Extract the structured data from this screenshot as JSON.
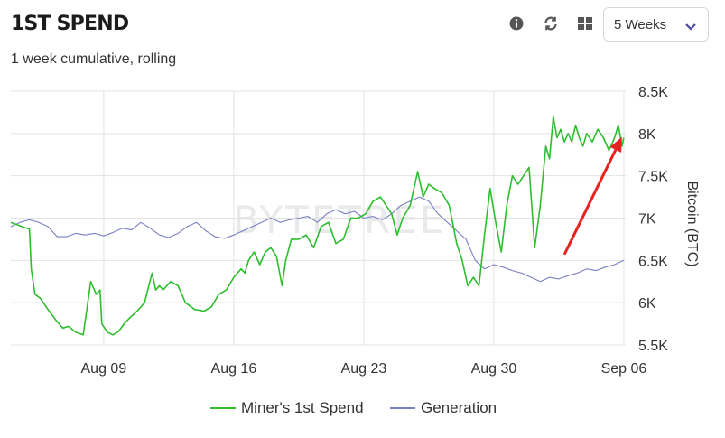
{
  "header": {
    "title": "1ST SPEND",
    "subtitle": "1 week cumulative, rolling",
    "icons": [
      "info-icon",
      "refresh-icon",
      "grid-view-icon"
    ],
    "range_select": {
      "value": "5 Weeks"
    }
  },
  "watermark": "BYTETREE",
  "colors": {
    "miner": "#2ebd2e",
    "generation": "#7b7fc4",
    "grid": "#e3e3e3",
    "annotation": "#e8231f"
  },
  "chart_data": {
    "type": "line",
    "title": "",
    "xlabel": "",
    "ylabel": "Bitcoin (BTC)",
    "y_axis_position": "right",
    "ylim": [
      5500,
      8500
    ],
    "y_ticks": [
      5500,
      6000,
      6500,
      7000,
      7500,
      8000,
      8500
    ],
    "y_tick_labels": [
      "5.5K",
      "6K",
      "6.5K",
      "7K",
      "7.5K",
      "8K",
      "8.5K"
    ],
    "x_tick_labels": [
      "Aug 09",
      "Aug 16",
      "Aug 23",
      "Aug 30",
      "Sep 06"
    ],
    "x_tick_days": [
      9,
      16,
      23,
      30,
      37
    ],
    "x_range_days": [
      4,
      37.1
    ],
    "grid": true,
    "legend_position": "bottom",
    "series": [
      {
        "name": "Miner's 1st Spend",
        "color": "#2ebd2e",
        "x": [
          4.0,
          4.6,
          5.0,
          5.1,
          5.3,
          5.6,
          6.0,
          6.4,
          6.8,
          7.1,
          7.5,
          7.9,
          8.3,
          8.6,
          8.8,
          8.9,
          9.2,
          9.5,
          9.8,
          10.1,
          10.4,
          10.8,
          11.2,
          11.6,
          11.8,
          12.0,
          12.2,
          12.6,
          13.0,
          13.4,
          13.9,
          14.4,
          14.8,
          15.2,
          15.6,
          16.0,
          16.4,
          16.6,
          16.8,
          17.1,
          17.4,
          17.7,
          18.0,
          18.3,
          18.6,
          18.8,
          19.1,
          19.5,
          19.9,
          20.3,
          20.7,
          21.1,
          21.5,
          21.9,
          22.3,
          22.7,
          23.1,
          23.5,
          23.9,
          24.2,
          24.5,
          24.8,
          25.1,
          25.5,
          25.9,
          26.2,
          26.5,
          26.8,
          27.2,
          27.6,
          28.0,
          28.3,
          28.6,
          28.9,
          29.2,
          29.5,
          29.8,
          30.1,
          30.4,
          30.7,
          31.0,
          31.3,
          31.6,
          31.9,
          32.2,
          32.5,
          32.8,
          33.0,
          33.2,
          33.4,
          33.6,
          33.8,
          34.0,
          34.2,
          34.4,
          34.6,
          34.8,
          35.0,
          35.3,
          35.6,
          35.9,
          36.2,
          36.5,
          36.7,
          36.9,
          37.0
        ],
        "values": [
          6950,
          6900,
          6870,
          6400,
          6100,
          6050,
          5920,
          5800,
          5700,
          5720,
          5650,
          5620,
          6250,
          6100,
          6150,
          5750,
          5650,
          5620,
          5660,
          5750,
          5820,
          5900,
          6000,
          6350,
          6150,
          6200,
          6150,
          6250,
          6200,
          6000,
          5920,
          5900,
          5950,
          6100,
          6150,
          6300,
          6400,
          6350,
          6500,
          6600,
          6450,
          6600,
          6650,
          6550,
          6200,
          6500,
          6750,
          6750,
          6800,
          6650,
          6900,
          6950,
          6700,
          6750,
          7000,
          7000,
          7050,
          7200,
          7250,
          7150,
          7050,
          6800,
          7000,
          7150,
          7550,
          7250,
          7400,
          7350,
          7300,
          7150,
          6700,
          6500,
          6200,
          6300,
          6200,
          6800,
          7350,
          6950,
          6600,
          7150,
          7500,
          7400,
          7500,
          7600,
          6650,
          7150,
          7850,
          7700,
          8200,
          7950,
          8050,
          7900,
          8000,
          7900,
          8100,
          7950,
          7850,
          8000,
          7900,
          8050,
          7950,
          7800,
          7950,
          8100,
          7850,
          7950
        ]
      },
      {
        "name": "Generation",
        "color": "#7b7fc4",
        "x": [
          4.0,
          4.5,
          5.0,
          5.5,
          6.0,
          6.5,
          7.0,
          7.5,
          8.0,
          8.5,
          9.0,
          9.5,
          10.0,
          10.5,
          11.0,
          11.5,
          12.0,
          12.5,
          13.0,
          13.5,
          14.0,
          14.5,
          15.0,
          15.5,
          16.0,
          16.5,
          17.0,
          17.5,
          18.0,
          18.5,
          19.0,
          19.5,
          20.0,
          20.5,
          21.0,
          21.5,
          22.0,
          22.5,
          23.0,
          23.5,
          24.0,
          24.5,
          25.0,
          25.5,
          26.0,
          26.5,
          27.0,
          27.5,
          28.0,
          28.5,
          29.0,
          29.5,
          30.0,
          30.5,
          31.0,
          31.5,
          32.0,
          32.5,
          33.0,
          33.5,
          34.0,
          34.5,
          35.0,
          35.5,
          36.0,
          36.5,
          37.0
        ],
        "values": [
          6900,
          6950,
          6980,
          6950,
          6900,
          6780,
          6780,
          6820,
          6800,
          6820,
          6790,
          6830,
          6880,
          6860,
          6950,
          6880,
          6800,
          6770,
          6820,
          6900,
          6950,
          6850,
          6780,
          6760,
          6800,
          6850,
          6900,
          6950,
          7000,
          6950,
          6980,
          7000,
          7020,
          6950,
          7050,
          7100,
          7050,
          7080,
          7000,
          7020,
          6980,
          7050,
          7150,
          7200,
          7250,
          7200,
          7050,
          6950,
          6850,
          6750,
          6500,
          6400,
          6450,
          6420,
          6380,
          6350,
          6300,
          6250,
          6300,
          6280,
          6320,
          6350,
          6400,
          6380,
          6420,
          6450,
          6500
        ]
      }
    ],
    "annotation": {
      "type": "arrow",
      "color": "#e8231f",
      "from": {
        "x": 33.8,
        "y": 6570
      },
      "to": {
        "x": 36.9,
        "y": 7960
      }
    }
  }
}
